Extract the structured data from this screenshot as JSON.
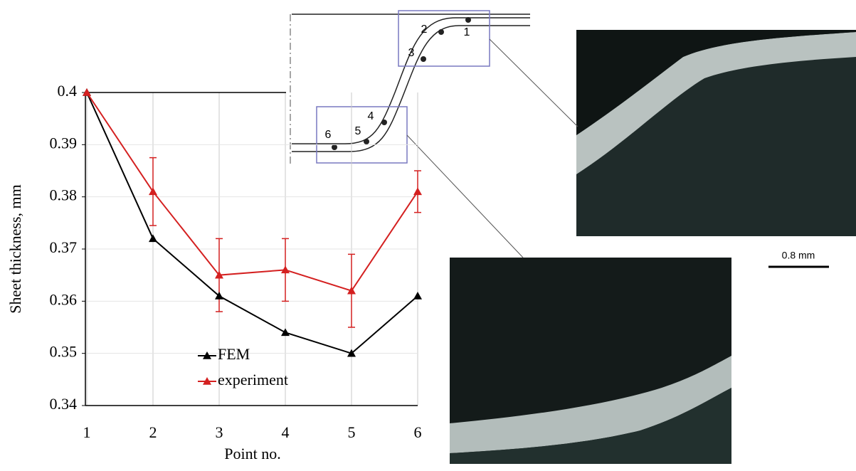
{
  "chart_data": {
    "type": "line",
    "categories": [
      "1",
      "2",
      "3",
      "4",
      "5",
      "6"
    ],
    "x_label": "Point no.",
    "y_label": "Sheet thickness, mm",
    "ylim": [
      0.34,
      0.4
    ],
    "yticks": [
      0.34,
      0.35,
      0.36,
      0.37,
      0.38,
      0.39,
      0.4
    ],
    "grid": true,
    "series": [
      {
        "name": "FEM",
        "color": "#000000",
        "values": [
          0.4,
          0.372,
          0.361,
          0.354,
          0.35,
          0.361
        ]
      },
      {
        "name": "experiment",
        "color": "#d42020",
        "values": [
          0.4,
          0.381,
          0.365,
          0.366,
          0.362,
          0.381
        ],
        "errors": [
          null,
          0.0065,
          0.007,
          0.006,
          0.007,
          0.004
        ]
      }
    ]
  },
  "diagram": {
    "point_labels": [
      "1",
      "2",
      "3",
      "4",
      "5",
      "6"
    ],
    "scale_bar": "0.8 mm"
  }
}
